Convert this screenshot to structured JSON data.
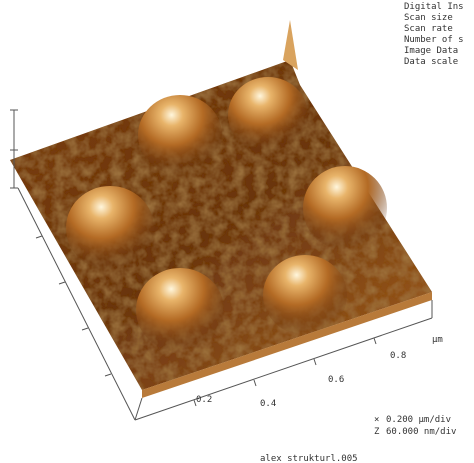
{
  "header": {
    "lines": [
      "Digital Ins",
      "Scan size",
      "Scan rate",
      "Number of s",
      "Image Data",
      "Data scale"
    ]
  },
  "axis": {
    "unit": "µm",
    "labels": [
      "0.2",
      "0.4",
      "0.6",
      "0.8"
    ]
  },
  "scale": {
    "x_symbol": "×",
    "x_value": "0.200 µm/div",
    "z_symbol": "Z",
    "z_value": "60.000 nm/div"
  },
  "filename": "alex strukturl.005"
}
